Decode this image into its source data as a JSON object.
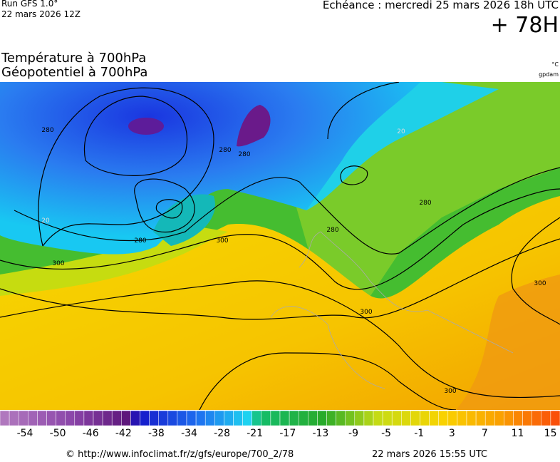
{
  "header": {
    "run": "Run GFS 1.0°",
    "run_date": "22 mars 2026 12Z",
    "echeance": "Echéance : mercredi 25 mars 2026 18h UTC",
    "lead": "+ 78H"
  },
  "title": {
    "line1": "Température à 700hPa",
    "line2": "Géopotentiel à 700hPa"
  },
  "units": {
    "temp": "°C",
    "geo": "gpdam"
  },
  "map": {
    "contour_labels": [
      "280",
      "280",
      "280",
      "20",
      "20",
      "280",
      "300",
      "300",
      "280",
      "280",
      "300",
      "300",
      "300"
    ]
  },
  "colorbar": {
    "labels": [
      -54,
      -50,
      -46,
      -42,
      -38,
      -34,
      -28,
      -21,
      -17,
      -13,
      -9,
      -5,
      -1,
      3,
      7,
      11,
      15
    ]
  },
  "footer": {
    "source": "© http://www.infoclimat.fr/z/gfs/europe/700_2/78",
    "date": "22 mars 2026 15:55 UTC"
  }
}
